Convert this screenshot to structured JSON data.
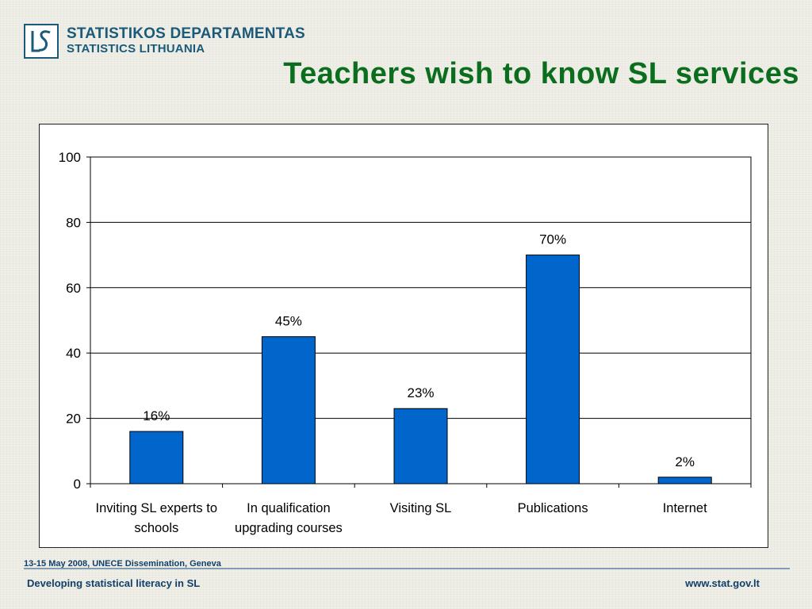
{
  "header": {
    "logo_line1": "STATISTIKOS DEPARTAMENTAS",
    "logo_line2": "STATISTICS LITHUANIA",
    "title": "Teachers wish to know SL services"
  },
  "chart_data": {
    "type": "bar",
    "categories": [
      [
        "Inviting SL experts to",
        "schools"
      ],
      [
        "In qualification",
        "upgrading courses"
      ],
      [
        "Visiting SL"
      ],
      [
        "Publications"
      ],
      [
        "Internet"
      ]
    ],
    "values": [
      16,
      45,
      23,
      70,
      2
    ],
    "data_labels": [
      "16%",
      "45%",
      "23%",
      "70%",
      "2%"
    ],
    "ylim": [
      0,
      100
    ],
    "yticks": [
      0,
      20,
      40,
      60,
      80,
      100
    ],
    "grid": true,
    "legend": "none",
    "bar_color": "#0066cc"
  },
  "footer": {
    "date": "13-15 May 2008, UNECE Dissemination, Geneva",
    "left": "Developing statistical literacy in SL",
    "right": "www.stat.gov.lt"
  }
}
